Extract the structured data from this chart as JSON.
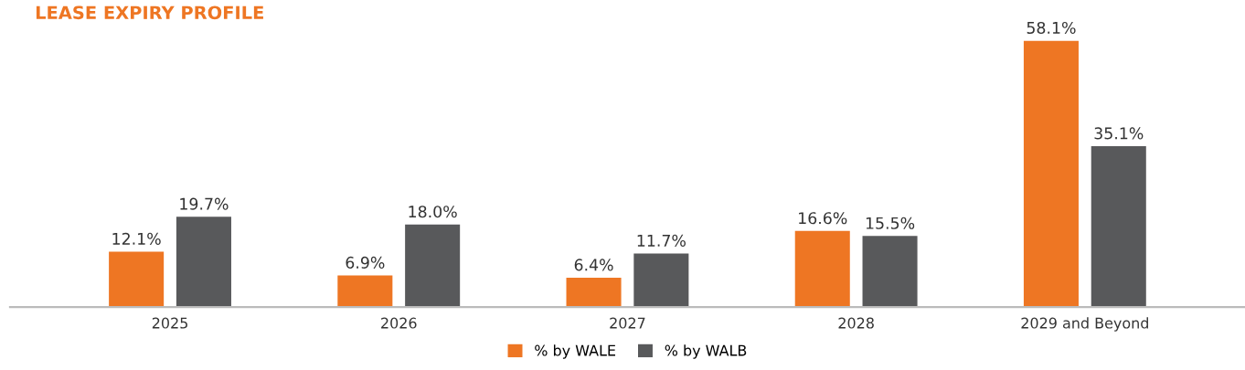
{
  "chart_data": {
    "type": "bar",
    "title": "LEASE EXPIRY PROFILE",
    "categories": [
      "2025",
      "2026",
      "2027",
      "2028",
      "2029 and Beyond"
    ],
    "series": [
      {
        "name": "% by WALE",
        "color": "#ee7623",
        "values": [
          12.1,
          6.9,
          6.4,
          16.6,
          58.1
        ],
        "value_labels": [
          "12.1%",
          "6.9%",
          "6.4%",
          "16.6%",
          "58.1%"
        ]
      },
      {
        "name": "% by WALB",
        "color": "#58595b",
        "values": [
          19.7,
          18.0,
          11.7,
          15.5,
          35.1
        ],
        "value_labels": [
          "19.7%",
          "18.0%",
          "11.7%",
          "15.5%",
          "35.1%"
        ]
      }
    ],
    "legend": "bottom"
  }
}
